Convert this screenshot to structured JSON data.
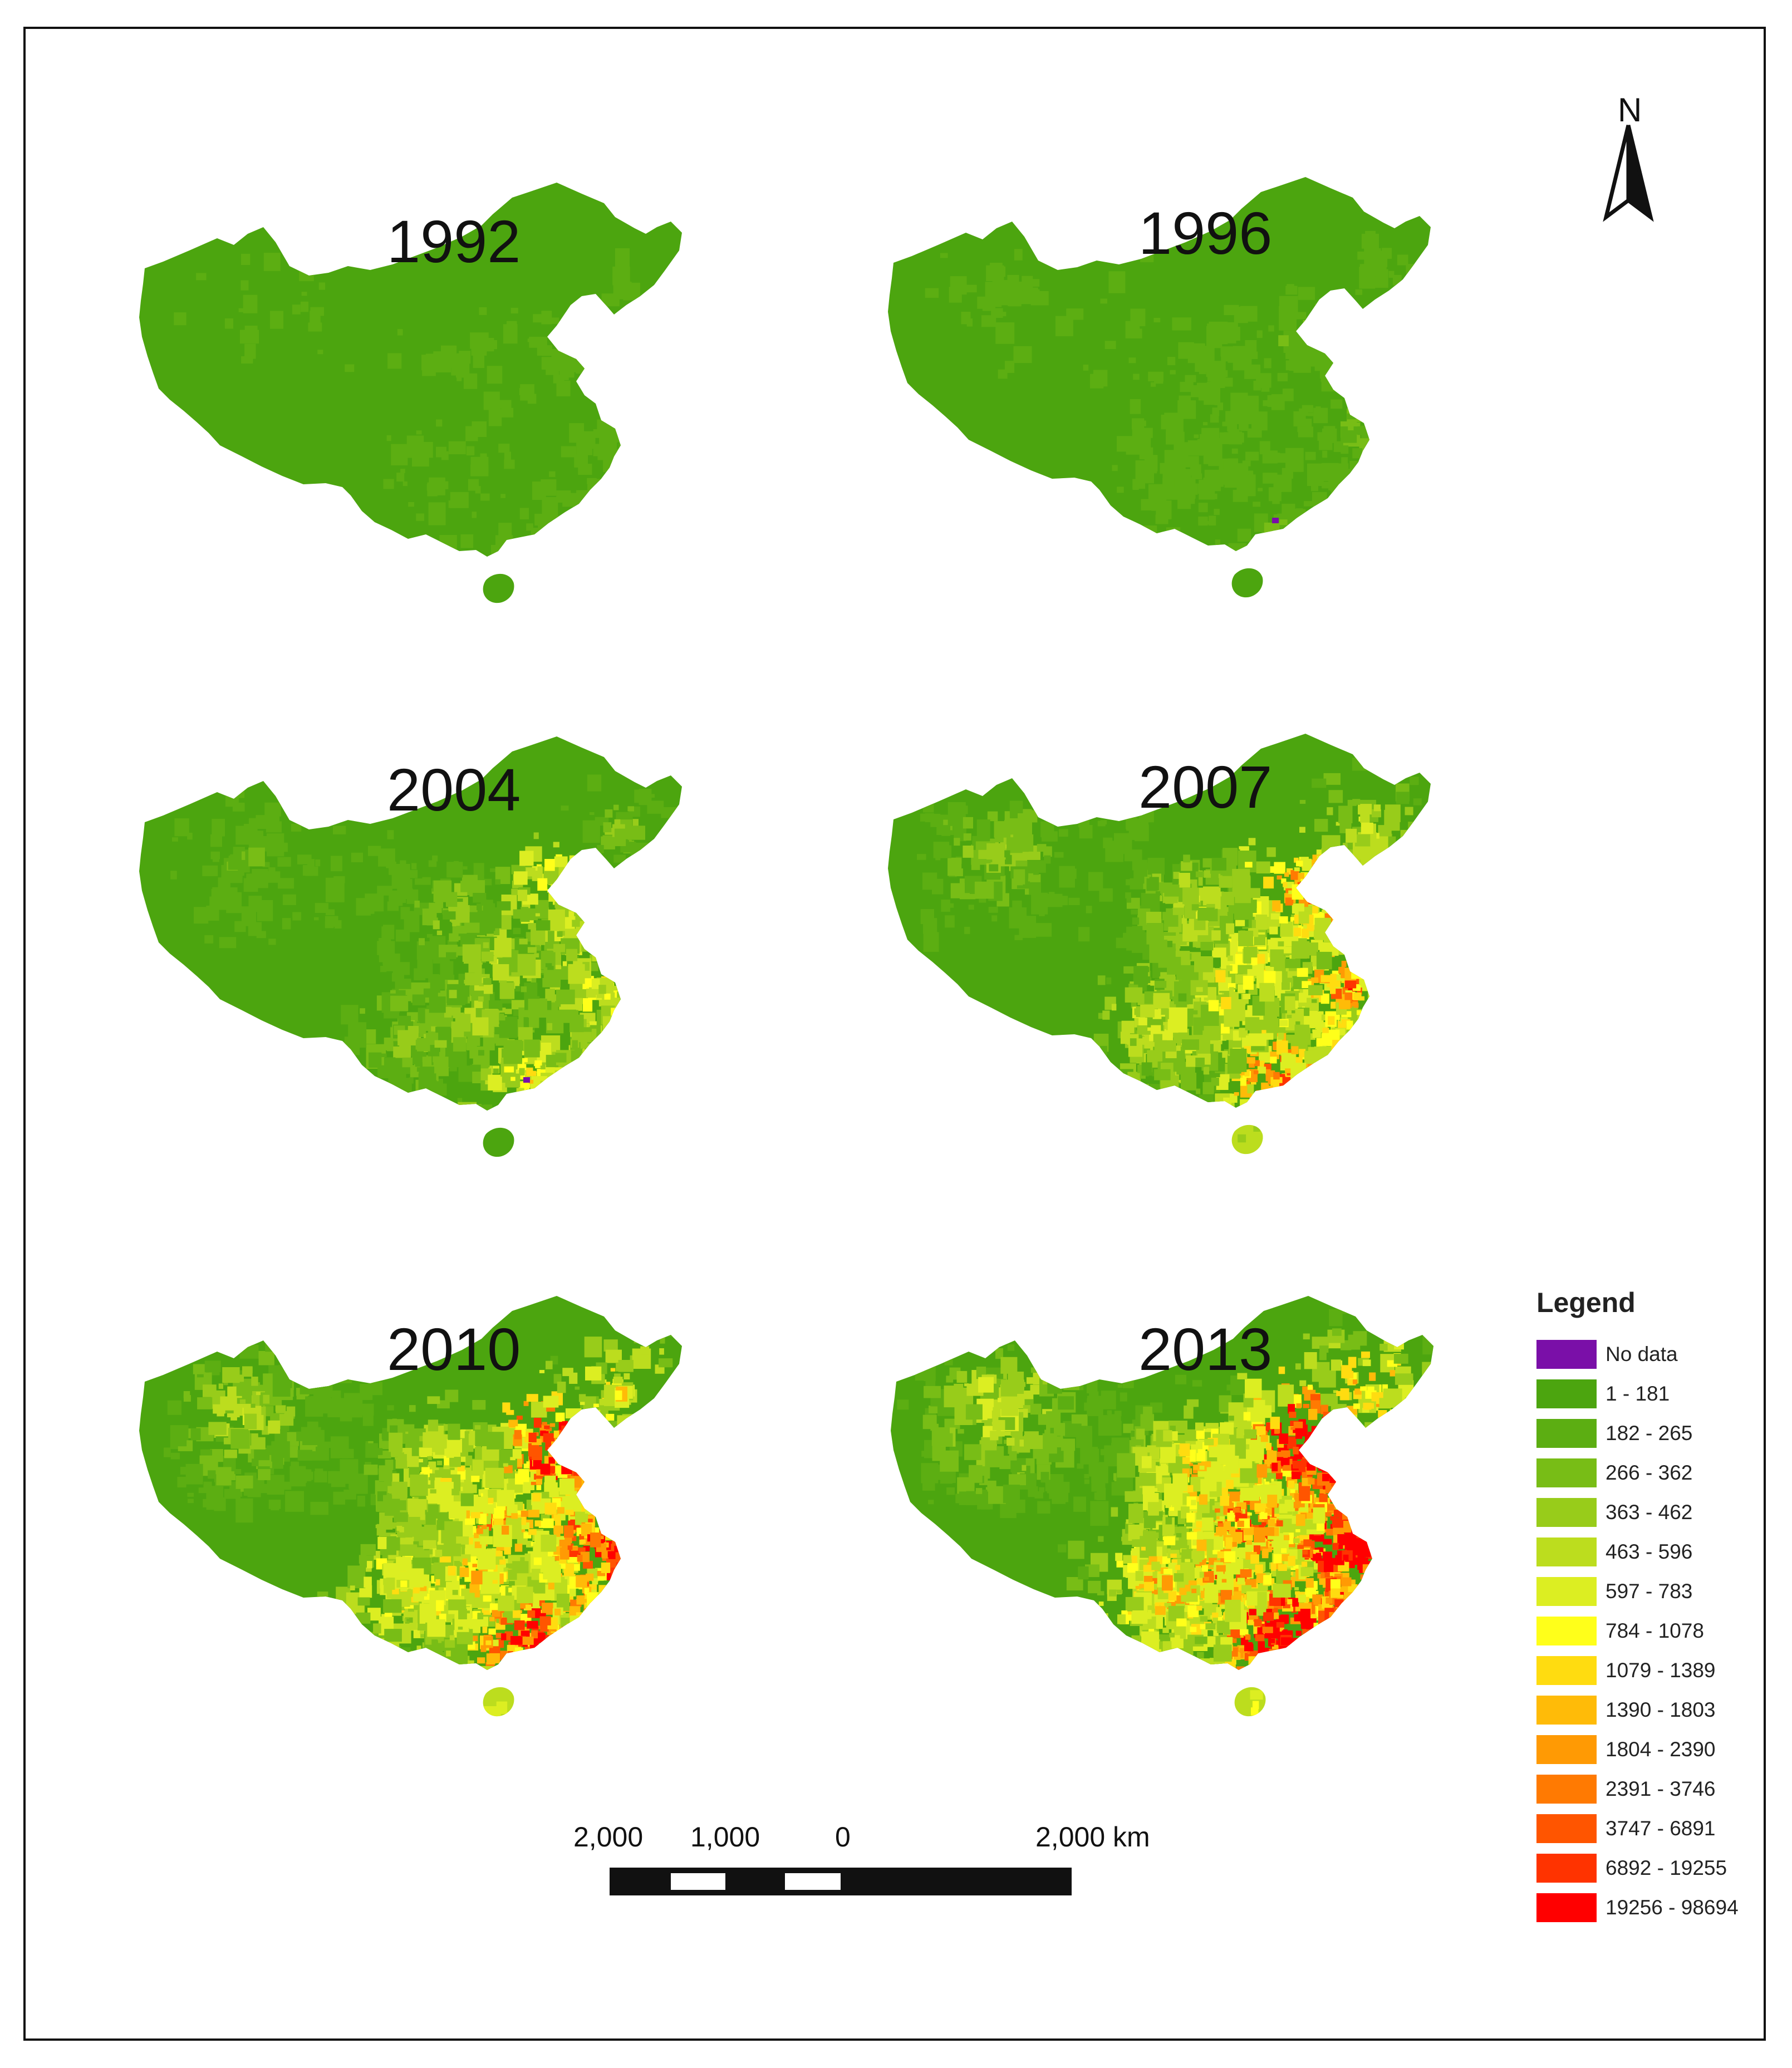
{
  "maps": [
    {
      "year": "1992",
      "intensity": 0.04
    },
    {
      "year": "1996",
      "intensity": 0.15
    },
    {
      "year": "2004",
      "intensity": 0.4
    },
    {
      "year": "2007",
      "intensity": 0.62
    },
    {
      "year": "2010",
      "intensity": 0.82
    },
    {
      "year": "2013",
      "intensity": 1.0
    }
  ],
  "north_arrow": {
    "letter": "N",
    "icon": "north-arrow-icon"
  },
  "scalebar": {
    "labels": [
      "2,000",
      "1,000",
      "0",
      "2,000 km"
    ]
  },
  "legend": {
    "title": "Legend",
    "items": [
      {
        "label": "No data",
        "color": "#7a0fa8"
      },
      {
        "label": "1 - 181",
        "color": "#4ca50f"
      },
      {
        "label": "182 - 265",
        "color": "#5cae12"
      },
      {
        "label": "266 - 362",
        "color": "#78bd16"
      },
      {
        "label": "363 - 462",
        "color": "#98cc1a"
      },
      {
        "label": "463 - 596",
        "color": "#bcdd1e"
      },
      {
        "label": "597 - 783",
        "color": "#dcee22"
      },
      {
        "label": "784 - 1078",
        "color": "#ffff1a"
      },
      {
        "label": "1079 - 1389",
        "color": "#ffdc10"
      },
      {
        "label": "1390 - 1803",
        "color": "#ffbb08"
      },
      {
        "label": "1804 - 2390",
        "color": "#ff9a04"
      },
      {
        "label": "2391 - 3746",
        "color": "#ff7a02"
      },
      {
        "label": "3747 - 6891",
        "color": "#ff5500"
      },
      {
        "label": "6892 - 19255",
        "color": "#ff3300"
      },
      {
        "label": "19256 - 98694",
        "color": "#ff0000"
      }
    ]
  }
}
